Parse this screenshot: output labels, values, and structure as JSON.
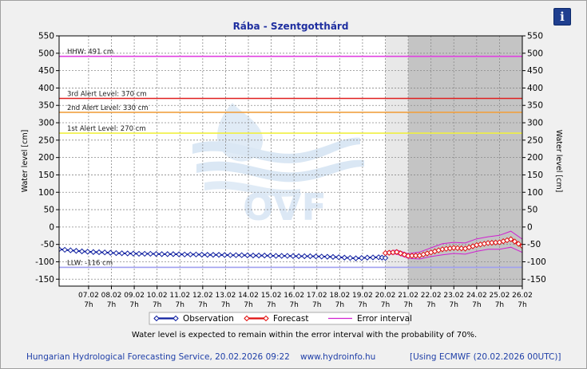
{
  "title": "Rába - Szentgotthárd",
  "chart_data": {
    "type": "line",
    "title": "Rába - Szentgotthárd",
    "ylabel_left": "Water level [cm]",
    "ylabel_right": "Water level [cm]",
    "ylim": [
      -170,
      550
    ],
    "yticks": [
      -150,
      -100,
      -50,
      0,
      50,
      100,
      150,
      200,
      250,
      300,
      350,
      400,
      450,
      500,
      550
    ],
    "xlim": [
      "2026-02-06T00:00",
      "2026-02-26T07:00"
    ],
    "xticks": [
      {
        "date": "2026-02-07T07:00",
        "day": "07.02",
        "hour": "7h"
      },
      {
        "date": "2026-02-08T07:00",
        "day": "08.02",
        "hour": "7h"
      },
      {
        "date": "2026-02-09T07:00",
        "day": "09.02",
        "hour": "7h"
      },
      {
        "date": "2026-02-10T07:00",
        "day": "10.02",
        "hour": "7h"
      },
      {
        "date": "2026-02-11T07:00",
        "day": "11.02",
        "hour": "7h"
      },
      {
        "date": "2026-02-12T07:00",
        "day": "12.02",
        "hour": "7h"
      },
      {
        "date": "2026-02-13T07:00",
        "day": "13.02",
        "hour": "7h"
      },
      {
        "date": "2026-02-14T07:00",
        "day": "14.02",
        "hour": "7h"
      },
      {
        "date": "2026-02-15T07:00",
        "day": "15.02",
        "hour": "7h"
      },
      {
        "date": "2026-02-16T07:00",
        "day": "16.02",
        "hour": "7h"
      },
      {
        "date": "2026-02-17T07:00",
        "day": "17.02",
        "hour": "7h"
      },
      {
        "date": "2026-02-18T07:00",
        "day": "18.02",
        "hour": "7h"
      },
      {
        "date": "2026-02-19T07:00",
        "day": "19.02",
        "hour": "7h"
      },
      {
        "date": "2026-02-20T07:00",
        "day": "20.02",
        "hour": "7h"
      },
      {
        "date": "2026-02-21T07:00",
        "day": "21.02",
        "hour": "7h"
      },
      {
        "date": "2026-02-22T07:00",
        "day": "22.02",
        "hour": "7h"
      },
      {
        "date": "2026-02-23T07:00",
        "day": "23.02",
        "hour": "7h"
      },
      {
        "date": "2026-02-24T07:00",
        "day": "24.02",
        "hour": "7h"
      },
      {
        "date": "2026-02-25T07:00",
        "day": "25.02",
        "hour": "7h"
      },
      {
        "date": "2026-02-26T07:00",
        "day": "26.02",
        "hour": "7h"
      }
    ],
    "grid": true,
    "shaded_periods": [
      {
        "start": "2026-02-20T07:00",
        "end": "2026-02-21T07:00",
        "color": "#e8e8e8"
      },
      {
        "start": "2026-02-21T07:00",
        "end": "2026-02-26T07:00",
        "color": "#c4c4c4"
      }
    ],
    "reference_lines": [
      {
        "label": "HHW: 491 cm",
        "value": 491,
        "color": "#e040e0"
      },
      {
        "label": "3rd Alert Level: 370 cm",
        "value": 370,
        "color": "#e02020"
      },
      {
        "label": "2nd Alert Level: 330 cm",
        "value": 330,
        "color": "#f0a040"
      },
      {
        "label": "1st Alert Level: 270 cm",
        "value": 270,
        "color": "#f0f040"
      },
      {
        "label": "LLW: -116 cm",
        "value": -116,
        "color": "#a0a0f0"
      }
    ],
    "series": [
      {
        "name": "Observation",
        "color": "#1020a0",
        "x": [
          "2026-02-06T00:00",
          "2026-02-06T12:00",
          "2026-02-07T00:00",
          "2026-02-07T12:00",
          "2026-02-08T00:00",
          "2026-02-08T12:00",
          "2026-02-09T00:00",
          "2026-02-09T12:00",
          "2026-02-10T00:00",
          "2026-02-10T12:00",
          "2026-02-11T00:00",
          "2026-02-11T12:00",
          "2026-02-12T00:00",
          "2026-02-12T12:00",
          "2026-02-13T00:00",
          "2026-02-13T12:00",
          "2026-02-14T00:00",
          "2026-02-14T12:00",
          "2026-02-15T00:00",
          "2026-02-15T12:00",
          "2026-02-16T00:00",
          "2026-02-16T12:00",
          "2026-02-17T00:00",
          "2026-02-17T12:00",
          "2026-02-18T00:00",
          "2026-02-18T12:00",
          "2026-02-19T00:00",
          "2026-02-19T12:00",
          "2026-02-20T00:00",
          "2026-02-20T07:00"
        ],
        "y": [
          -64,
          -67,
          -70,
          -72,
          -73,
          -75,
          -76,
          -77,
          -77,
          -78,
          -78,
          -79,
          -79,
          -80,
          -80,
          -81,
          -81,
          -82,
          -82,
          -83,
          -83,
          -84,
          -84,
          -85,
          -86,
          -88,
          -90,
          -88,
          -87,
          -89
        ]
      },
      {
        "name": "Forecast",
        "color": "#e01010",
        "x": [
          "2026-02-20T07:00",
          "2026-02-20T19:00",
          "2026-02-21T07:00",
          "2026-02-21T19:00",
          "2026-02-22T07:00",
          "2026-02-22T19:00",
          "2026-02-23T07:00",
          "2026-02-23T19:00",
          "2026-02-24T07:00",
          "2026-02-24T19:00",
          "2026-02-25T07:00",
          "2026-02-25T19:00",
          "2026-02-26T07:00"
        ],
        "y": [
          -75,
          -72,
          -83,
          -82,
          -73,
          -64,
          -60,
          -62,
          -52,
          -46,
          -44,
          -35,
          -55
        ]
      },
      {
        "name": "Error interval",
        "color": "#d020d0",
        "x": [
          "2026-02-20T07:00",
          "2026-02-20T19:00",
          "2026-02-21T07:00",
          "2026-02-21T19:00",
          "2026-02-22T07:00",
          "2026-02-22T19:00",
          "2026-02-23T07:00",
          "2026-02-23T19:00",
          "2026-02-24T07:00",
          "2026-02-24T19:00",
          "2026-02-25T07:00",
          "2026-02-25T19:00",
          "2026-02-26T07:00"
        ],
        "upper": [
          -72,
          -66,
          -77,
          -72,
          -60,
          -48,
          -44,
          -46,
          -34,
          -28,
          -24,
          -12,
          -35
        ],
        "lower": [
          -78,
          -78,
          -90,
          -92,
          -85,
          -80,
          -76,
          -78,
          -70,
          -64,
          -64,
          -58,
          -73
        ]
      }
    ],
    "legend": {
      "placement": "bottom-center",
      "entries": [
        "Observation",
        "Forecast",
        "Error interval"
      ]
    },
    "note": "Water level is expected to remain within the error interval with the probability of 70%."
  },
  "footer": {
    "provider": "Hungarian Hydrological Forecasting Service, 20.02.2026 09:22",
    "url": "www.hydroinfo.hu",
    "model": "[Using ECMWF (20.02.2026  00UTC)]"
  },
  "info_button": {
    "label": "i",
    "icon": "info-icon"
  }
}
